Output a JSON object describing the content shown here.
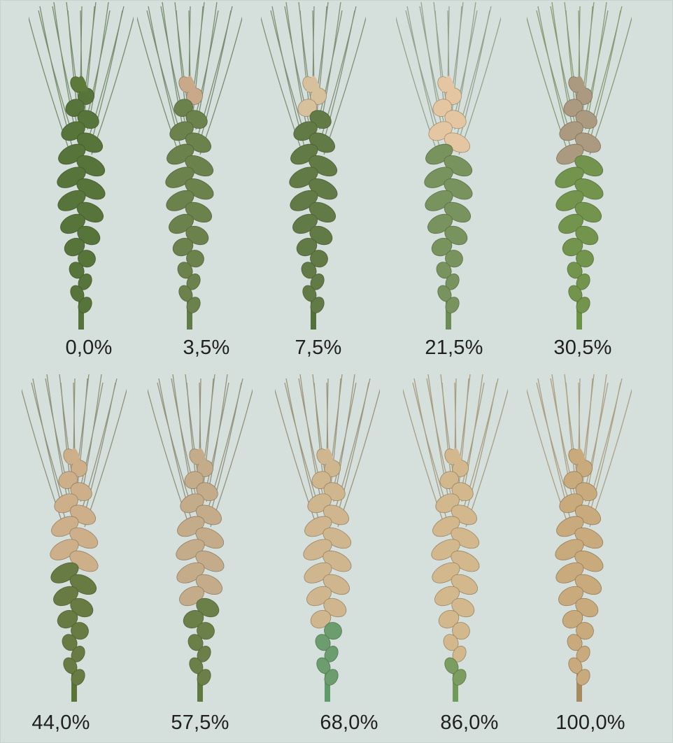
{
  "specimens": [
    {
      "label": "0,0%",
      "severity": 0.0,
      "head_color": "#5d7a3a",
      "spike_color": "#56733a",
      "awn_color": "#6e8560"
    },
    {
      "label": "3,5%",
      "severity": 0.035,
      "head_color": "#c9a98a",
      "spike_color": "#5f7d45",
      "awn_color": "#6f8565"
    },
    {
      "label": "7,5%",
      "severity": 0.075,
      "head_color": "#d7c19c",
      "spike_color": "#52703a",
      "awn_color": "#79886c"
    },
    {
      "label": "21,5%",
      "severity": 0.215,
      "head_color": "#e4c6a2",
      "spike_color": "#6a8c55",
      "awn_color": "#8f9d86"
    },
    {
      "label": "30,5%",
      "severity": 0.305,
      "head_color": "#ab9a80",
      "spike_color": "#6b9346",
      "awn_color": "#7f946b"
    },
    {
      "label": "44,0%",
      "severity": 0.44,
      "head_color": "#cdb08a",
      "spike_color": "#5a7438",
      "awn_color": "#8a8a72"
    },
    {
      "label": "57,5%",
      "severity": 0.575,
      "head_color": "#c4ac8a",
      "spike_color": "#5f7a40",
      "awn_color": "#8d8a72"
    },
    {
      "label": "68,0%",
      "severity": 0.68,
      "head_color": "#cfb68e",
      "spike_color": "#5f9a6a",
      "awn_color": "#998e72"
    },
    {
      "label": "86,0%",
      "severity": 0.86,
      "head_color": "#d2b88c",
      "spike_color": "#6f9a5a",
      "awn_color": "#a49679"
    },
    {
      "label": "100,0%",
      "severity": 1.0,
      "head_color": "#c9aa7c",
      "spike_color": "#a88a60",
      "awn_color": "#a8987a"
    }
  ]
}
